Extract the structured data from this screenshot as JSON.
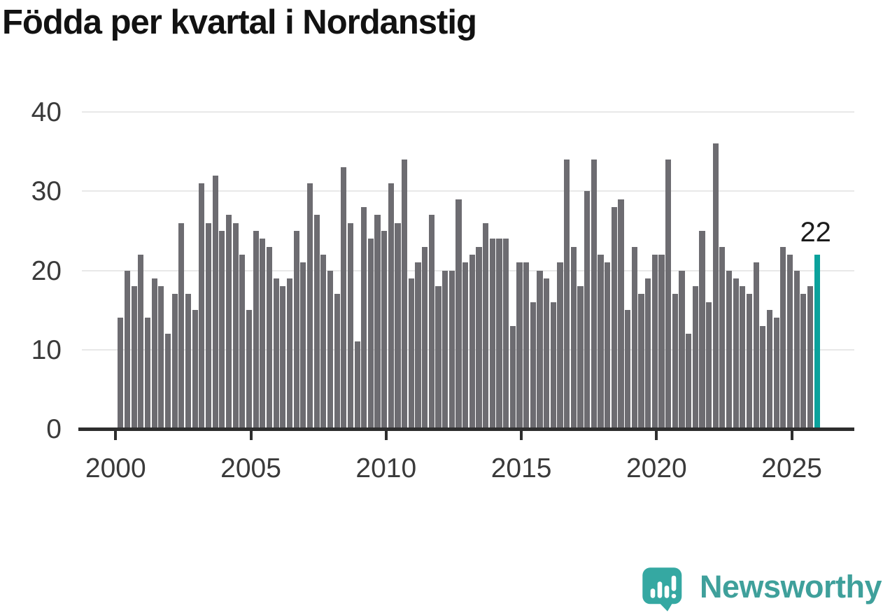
{
  "title": "Födda per kvartal i Nordanstig",
  "chart_data": {
    "type": "bar",
    "title": "Födda per kvartal i Nordanstig",
    "x_start": "2000 Q1",
    "x_end": "2025 Q4",
    "frequency": "quarterly",
    "values": [
      14,
      20,
      18,
      22,
      14,
      19,
      18,
      12,
      17,
      26,
      17,
      15,
      31,
      26,
      32,
      25,
      27,
      26,
      22,
      15,
      25,
      24,
      23,
      19,
      18,
      19,
      25,
      21,
      31,
      27,
      22,
      20,
      17,
      33,
      26,
      11,
      28,
      24,
      27,
      25,
      31,
      26,
      34,
      19,
      21,
      23,
      27,
      18,
      20,
      20,
      29,
      21,
      22,
      23,
      26,
      24,
      24,
      24,
      13,
      21,
      21,
      16,
      20,
      19,
      16,
      21,
      34,
      23,
      18,
      30,
      34,
      22,
      21,
      28,
      29,
      15,
      23,
      17,
      19,
      22,
      22,
      34,
      17,
      20,
      12,
      18,
      25,
      16,
      36,
      23,
      20,
      19,
      18,
      17,
      21,
      13,
      15,
      14,
      23,
      22,
      20,
      17,
      18,
      22
    ],
    "x_tick_labels": [
      "2000",
      "2005",
      "2010",
      "2015",
      "2020",
      "2025"
    ],
    "y_tick_labels": [
      "0",
      "10",
      "20",
      "30",
      "40"
    ],
    "ylim": [
      0,
      40
    ],
    "grid": true,
    "legend": "none",
    "bar_color": "#6d6c71",
    "highlight": {
      "index": 103,
      "value": 22,
      "label": "22",
      "color": "#0ba29c"
    }
  },
  "branding": {
    "name": "Newsworthy",
    "icon": "speech-bubble-bar-chart-icon",
    "icon_color": "#35a8a2",
    "text_color": "#3fa09b"
  }
}
